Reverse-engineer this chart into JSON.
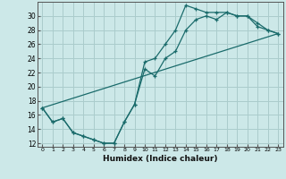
{
  "xlabel": "Humidex (Indice chaleur)",
  "ylabel": "",
  "bg_color": "#cce8e8",
  "grid_color": "#aacccc",
  "line_color": "#1a6b6b",
  "xlim": [
    -0.5,
    23.5
  ],
  "ylim": [
    11.5,
    32.0
  ],
  "yticks": [
    12,
    14,
    16,
    18,
    20,
    22,
    24,
    26,
    28,
    30
  ],
  "xticks": [
    0,
    1,
    2,
    3,
    4,
    5,
    6,
    7,
    8,
    9,
    10,
    11,
    12,
    13,
    14,
    15,
    16,
    17,
    18,
    19,
    20,
    21,
    22,
    23
  ],
  "line1_x": [
    0,
    1,
    2,
    3,
    4,
    5,
    6,
    7,
    8,
    9,
    10,
    11,
    12,
    13,
    14,
    15,
    16,
    17,
    18,
    19,
    20,
    21,
    22,
    23
  ],
  "line1_y": [
    17.0,
    15.0,
    15.5,
    13.5,
    13.0,
    12.5,
    12.0,
    12.0,
    15.0,
    17.5,
    23.5,
    24.0,
    26.0,
    28.0,
    31.5,
    31.0,
    30.5,
    30.5,
    30.5,
    30.0,
    30.0,
    28.5,
    28.0,
    27.5
  ],
  "line2_x": [
    0,
    1,
    2,
    3,
    4,
    5,
    6,
    7,
    8,
    9,
    10,
    11,
    12,
    13,
    14,
    15,
    16,
    17,
    18,
    19,
    20,
    21,
    22,
    23
  ],
  "line2_y": [
    17.0,
    15.0,
    15.5,
    13.5,
    13.0,
    12.5,
    12.0,
    12.0,
    15.0,
    17.5,
    22.5,
    21.5,
    24.0,
    25.0,
    28.0,
    29.5,
    30.0,
    29.5,
    30.5,
    30.0,
    30.0,
    29.0,
    28.0,
    27.5
  ],
  "line3_x": [
    0,
    23
  ],
  "line3_y": [
    17.0,
    27.5
  ]
}
